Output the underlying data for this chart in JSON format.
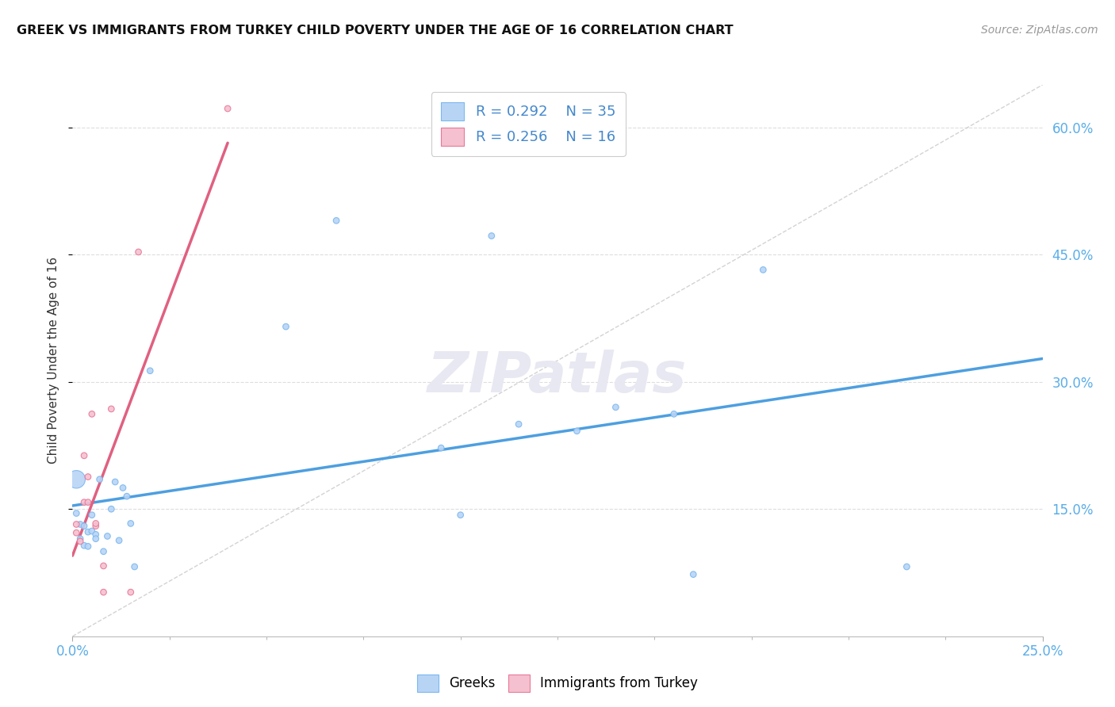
{
  "title": "GREEK VS IMMIGRANTS FROM TURKEY CHILD POVERTY UNDER THE AGE OF 16 CORRELATION CHART",
  "source": "Source: ZipAtlas.com",
  "ylabel": "Child Poverty Under the Age of 16",
  "xlim": [
    0.0,
    0.25
  ],
  "ylim": [
    0.0,
    0.65
  ],
  "ytick_values": [
    0.15,
    0.3,
    0.45,
    0.6
  ],
  "ytick_labels": [
    "15.0%",
    "30.0%",
    "45.0%",
    "60.0%"
  ],
  "xtick_values": [
    0.0,
    0.25
  ],
  "xtick_labels": [
    "0.0%",
    "25.0%"
  ],
  "greek_R": "0.292",
  "greek_N": "35",
  "turkey_R": "0.256",
  "turkey_N": "16",
  "greek_face_color": "#b8d4f5",
  "greek_edge_color": "#7ab8f0",
  "turkey_face_color": "#f5c0d0",
  "turkey_edge_color": "#e87898",
  "greek_trend_color": "#4d9fe0",
  "turkey_trend_color": "#e06080",
  "diag_color": "#c8c8c8",
  "title_color": "#111111",
  "axis_tick_color": "#5aade8",
  "legend_text_color": "#4488cc",
  "grid_color": "#dddddd",
  "watermark_text": "ZIPatlas",
  "watermark_color": "#e8e8f2",
  "greek_x": [
    0.001,
    0.001,
    0.002,
    0.002,
    0.003,
    0.003,
    0.004,
    0.004,
    0.005,
    0.005,
    0.006,
    0.006,
    0.007,
    0.008,
    0.009,
    0.01,
    0.011,
    0.012,
    0.013,
    0.014,
    0.015,
    0.016,
    0.02,
    0.055,
    0.068,
    0.095,
    0.1,
    0.108,
    0.115,
    0.13,
    0.14,
    0.155,
    0.16,
    0.178,
    0.215
  ],
  "greek_y": [
    0.185,
    0.145,
    0.132,
    0.115,
    0.13,
    0.107,
    0.123,
    0.106,
    0.143,
    0.124,
    0.12,
    0.115,
    0.185,
    0.1,
    0.118,
    0.15,
    0.182,
    0.113,
    0.175,
    0.165,
    0.133,
    0.082,
    0.313,
    0.365,
    0.49,
    0.222,
    0.143,
    0.472,
    0.25,
    0.242,
    0.27,
    0.262,
    0.073,
    0.432,
    0.082
  ],
  "greek_sizes": [
    260,
    30,
    30,
    30,
    30,
    30,
    30,
    30,
    30,
    30,
    30,
    30,
    30,
    30,
    30,
    30,
    30,
    30,
    30,
    30,
    30,
    30,
    30,
    30,
    30,
    30,
    30,
    30,
    30,
    30,
    30,
    30,
    30,
    30,
    30
  ],
  "turkey_x": [
    0.001,
    0.001,
    0.002,
    0.003,
    0.003,
    0.004,
    0.004,
    0.005,
    0.006,
    0.006,
    0.008,
    0.008,
    0.01,
    0.015,
    0.017,
    0.04
  ],
  "turkey_y": [
    0.132,
    0.122,
    0.112,
    0.213,
    0.158,
    0.158,
    0.188,
    0.262,
    0.13,
    0.133,
    0.083,
    0.052,
    0.268,
    0.052,
    0.453,
    0.622
  ],
  "turkey_sizes": [
    30,
    30,
    30,
    30,
    30,
    30,
    30,
    30,
    30,
    30,
    30,
    30,
    30,
    30,
    30,
    30
  ],
  "greek_trend_x": [
    0.0,
    0.25
  ],
  "turkey_trend_x": [
    0.0,
    0.04
  ]
}
